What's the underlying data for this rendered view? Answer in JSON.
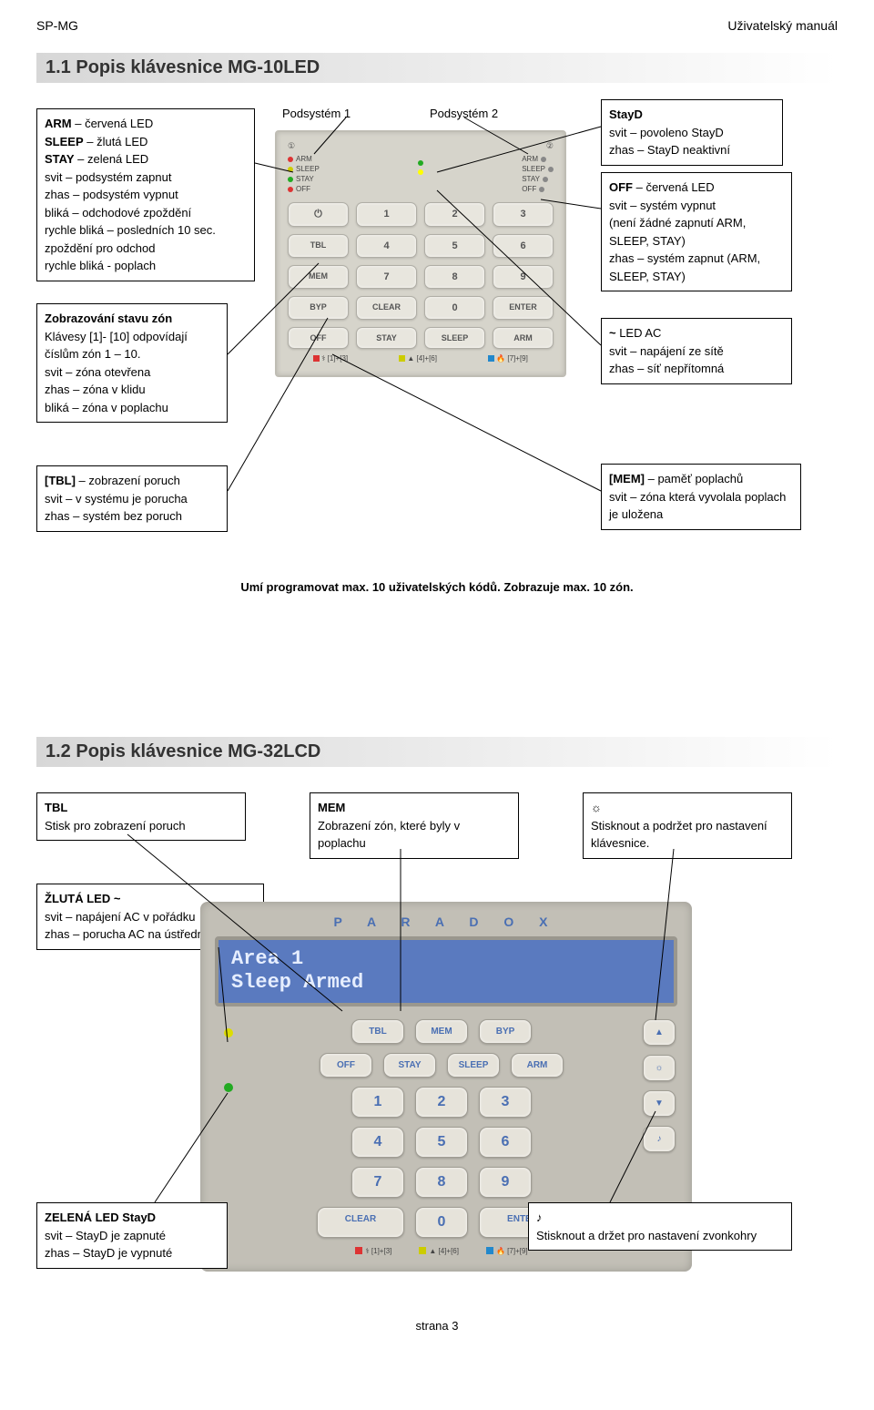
{
  "header": {
    "left": "SP-MG",
    "right": "Uživatelský manuál"
  },
  "section1": {
    "title": "1.1 Popis klávesnice MG-10LED",
    "boxes": {
      "left1": {
        "lines": [
          {
            "b": "ARM",
            "t": " – červená LED"
          },
          {
            "b": "SLEEP",
            "t": " – žlutá LED"
          },
          {
            "b": "STAY",
            "t": " – zelená LED"
          },
          {
            "plain": "svit – podsystém zapnut"
          },
          {
            "plain": "zhas – podsystém vypnut"
          },
          {
            "plain": "bliká – odchodové zpoždění"
          },
          {
            "plain": "rychle bliká – posledních 10 sec. zpoždění pro odchod"
          },
          {
            "plain": "rychle bliká - poplach"
          }
        ]
      },
      "left2": {
        "lines": [
          {
            "b": "Zobrazování stavu zón",
            "t": ""
          },
          {
            "plain": "Klávesy [1]- [10] odpovídají číslům zón 1 – 10."
          },
          {
            "plain": "svit – zóna otevřena"
          },
          {
            "plain": "zhas – zóna v klidu"
          },
          {
            "plain": "bliká – zóna v poplachu"
          }
        ]
      },
      "left3": {
        "lines": [
          {
            "b": "[TBL]",
            "t": " – zobrazení poruch"
          },
          {
            "plain": "svit – v systému je porucha"
          },
          {
            "plain": "zhas – systém bez poruch"
          }
        ]
      },
      "right1": {
        "lines": [
          {
            "b": "StayD",
            "t": ""
          },
          {
            "plain": "svit – povoleno StayD"
          },
          {
            "plain": "zhas – StayD neaktivní"
          }
        ]
      },
      "right2": {
        "lines": [
          {
            "b": "OFF",
            "t": " – červená LED"
          },
          {
            "plain": "svit – systém vypnut"
          },
          {
            "plain": "(není žádné zapnutí ARM, SLEEP, STAY)"
          },
          {
            "plain": "zhas – systém zapnut (ARM, SLEEP, STAY)"
          }
        ]
      },
      "right3": {
        "lines": [
          {
            "b": "~",
            "t": " LED AC"
          },
          {
            "plain": "svit – napájení ze sítě"
          },
          {
            "plain": "zhas – síť nepřítomná"
          }
        ]
      },
      "right4": {
        "lines": [
          {
            "b": "[MEM]",
            "t": " – paměť poplachů"
          },
          {
            "plain": "svit – zóna která vyvolala poplach je uložena"
          }
        ]
      }
    },
    "labels": {
      "p1": "Podsystém 1",
      "p2": "Podsystém 2"
    },
    "keypad": {
      "led_left": [
        "ARM",
        "SLEEP",
        "STAY",
        "OFF"
      ],
      "led_right": [
        "ARM",
        "SLEEP",
        "STAY",
        "OFF"
      ],
      "led_colors_left": [
        "#d33",
        "#cc0",
        "#2a2",
        "#d33"
      ],
      "led_colors_right": [
        "#888",
        "#888",
        "#888",
        "#888"
      ],
      "center_leds": [
        "#2a2",
        "#ff0"
      ],
      "keys_r1": [
        "⏻",
        "1",
        "2",
        "3"
      ],
      "keys_r2": [
        "TBL",
        "4",
        "5",
        "6"
      ],
      "keys_r3": [
        "MEM",
        "7",
        "8",
        "9"
      ],
      "keys_r4": [
        "BYP",
        "CLEAR",
        "0",
        "ENTER"
      ],
      "keys_r5": [
        "OFF",
        "STAY",
        "SLEEP",
        "ARM"
      ],
      "bottom": [
        {
          "color": "#d33",
          "label": "[1]+[3]",
          "icon": "⚕"
        },
        {
          "color": "#cc0",
          "label": "[4]+[6]",
          "icon": "▲"
        },
        {
          "color": "#28c",
          "label": "[7]+[9]",
          "icon": "🔥"
        }
      ]
    },
    "footnote": "Umí programovat max. 10 uživatelských kódů. Zobrazuje max. 10 zón."
  },
  "section2": {
    "title": "1.2 Popis klávesnice MG-32LCD",
    "boxes": {
      "top1": {
        "lines": [
          {
            "b": "TBL",
            "t": ""
          },
          {
            "plain": "Stisk pro zobrazení poruch"
          }
        ]
      },
      "top2": {
        "lines": [
          {
            "b": "MEM",
            "t": ""
          },
          {
            "plain": "Zobrazení zón, které byly v poplachu"
          }
        ]
      },
      "top3": {
        "lines": [
          {
            "b": "☼",
            "t": ""
          },
          {
            "plain": "Stisknout a podržet pro nastavení klávesnice."
          }
        ]
      },
      "yel": {
        "lines": [
          {
            "b": "ŽLUTÁ LED ~",
            "t": ""
          },
          {
            "plain": "svit – napájení AC v pořádku"
          },
          {
            "plain": "zhas – porucha AC na ústředně"
          }
        ]
      },
      "grn": {
        "lines": [
          {
            "b": "ZELENÁ LED StayD",
            "t": ""
          },
          {
            "plain": "svit – StayD je zapnuté"
          },
          {
            "plain": "zhas – StayD je vypnuté"
          }
        ]
      },
      "note": {
        "lines": [
          {
            "b": "♪",
            "t": ""
          },
          {
            "plain": "Stisknout a držet pro nastavení zvonkohry"
          }
        ]
      }
    },
    "lcd": {
      "brand": "P  A  R  A  D  O  X",
      "screen1": "Area 1",
      "screen2": "Sleep Armed",
      "leds": [
        {
          "c": "#dd0",
          "s": "~"
        },
        {
          "c": "#2a2",
          "s": "StayD"
        }
      ],
      "row1": [
        "TBL",
        "MEM",
        "BYP"
      ],
      "row2": [
        "OFF",
        "STAY",
        "SLEEP",
        "ARM"
      ],
      "nums": [
        [
          "1",
          "2",
          "3"
        ],
        [
          "4",
          "5",
          "6"
        ],
        [
          "7",
          "8",
          "9"
        ]
      ],
      "botrow": [
        "CLEAR",
        "0",
        "ENTER"
      ],
      "side": [
        "▲",
        "☼",
        "▼",
        "♪"
      ],
      "bottom": [
        {
          "color": "#d33",
          "label": "[1]+[3]",
          "icon": "⚕"
        },
        {
          "color": "#cc0",
          "label": "[4]+[6]",
          "icon": "▲"
        },
        {
          "color": "#28c",
          "label": "[7]+[9]",
          "icon": "🔥"
        }
      ]
    }
  },
  "pager": "strana 3"
}
